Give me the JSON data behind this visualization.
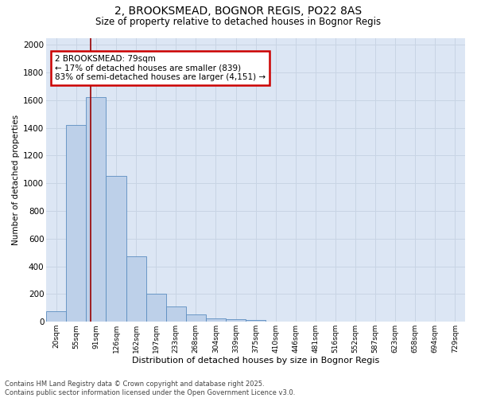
{
  "title_line1": "2, BROOKSMEAD, BOGNOR REGIS, PO22 8AS",
  "title_line2": "Size of property relative to detached houses in Bognor Regis",
  "xlabel": "Distribution of detached houses by size in Bognor Regis",
  "ylabel": "Number of detached properties",
  "categories": [
    "20sqm",
    "55sqm",
    "91sqm",
    "126sqm",
    "162sqm",
    "197sqm",
    "233sqm",
    "268sqm",
    "304sqm",
    "339sqm",
    "375sqm",
    "410sqm",
    "446sqm",
    "481sqm",
    "516sqm",
    "552sqm",
    "587sqm",
    "623sqm",
    "658sqm",
    "694sqm",
    "729sqm"
  ],
  "values": [
    75,
    1420,
    1620,
    1050,
    470,
    205,
    110,
    55,
    25,
    20,
    10,
    3,
    1,
    0,
    0,
    0,
    0,
    0,
    0,
    0,
    0
  ],
  "bar_color": "#bdd0e9",
  "bar_edge_color": "#5b8dc0",
  "grid_color": "#c8d4e4",
  "background_color": "#dce6f4",
  "vline_x": 1.73,
  "vline_color": "#990000",
  "annotation_text": "2 BROOKSMEAD: 79sqm\n← 17% of detached houses are smaller (839)\n83% of semi-detached houses are larger (4,151) →",
  "annotation_box_color": "#cc0000",
  "ylim": [
    0,
    2050
  ],
  "yticks": [
    0,
    200,
    400,
    600,
    800,
    1000,
    1200,
    1400,
    1600,
    1800,
    2000
  ],
  "footnote_line1": "Contains HM Land Registry data © Crown copyright and database right 2025.",
  "footnote_line2": "Contains public sector information licensed under the Open Government Licence v3.0."
}
